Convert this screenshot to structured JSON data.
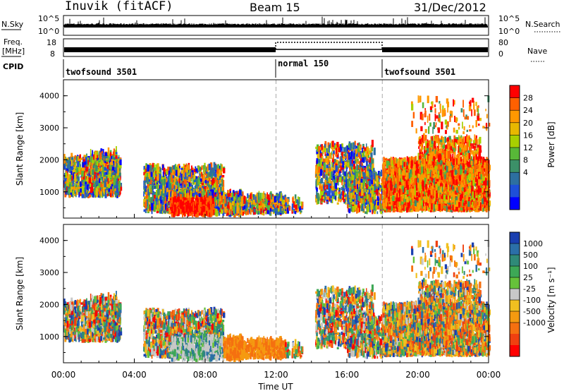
{
  "header": {
    "station": "Inuvik (fitACF)",
    "beam": "Beam 15",
    "date": "31/Dec/2012"
  },
  "top_panels": {
    "nsky_label": "N.Sky",
    "nsky_ticks_left": [
      "10^5",
      "10^0"
    ],
    "nsky_ticks_right": [
      "10^5",
      "10^0"
    ],
    "nsearch_label": "N.Search",
    "freq_label_1": "Freq.",
    "freq_label_2": "[MHz]",
    "freq_ticks": [
      "18",
      "8"
    ],
    "nave_ticks": [
      "80",
      "0"
    ],
    "nave_label": "Nave",
    "cpid_label": "CPID",
    "cpid_segments": [
      {
        "label": "twofsound 3501",
        "start": "00:00",
        "end": "12:00"
      },
      {
        "label": "normal 150",
        "start": "12:00",
        "end": "18:00"
      },
      {
        "label": "twofsound 3501",
        "start": "18:00",
        "end": "00:00"
      }
    ]
  },
  "chart_data": [
    {
      "type": "heatmap",
      "name": "power",
      "ylabel": "Slant Range [km]",
      "ylim": [
        180,
        4500
      ],
      "yticks": [
        "4000",
        "3000",
        "2000",
        "1000"
      ],
      "colorbar": {
        "label": "Power [dB]",
        "ticks": [
          "28",
          "24",
          "20",
          "16",
          "12",
          "8",
          "4"
        ],
        "colors": [
          "#ff0000",
          "#ff6000",
          "#ff9800",
          "#e8b800",
          "#a8d000",
          "#58b838",
          "#3c9068",
          "#2d6fa0",
          "#1e4fd8",
          "#0000ff"
        ]
      }
    },
    {
      "type": "heatmap",
      "name": "velocity",
      "ylabel": "Slant Range [km]",
      "ylim": [
        180,
        4500
      ],
      "yticks": [
        "4000",
        "3000",
        "2000",
        "1000"
      ],
      "xlabel": "Time UT",
      "xticks": [
        "00:00",
        "04:00",
        "08:00",
        "12:00",
        "16:00",
        "20:00",
        "00:00"
      ],
      "colorbar": {
        "label": "Velocity [m s⁻¹]",
        "ticks": [
          "1000",
          "500",
          "100",
          "25",
          "-25",
          "-100",
          "-500",
          "-1000"
        ],
        "colors": [
          "#1a3fb0",
          "#2b6fa8",
          "#2f8a78",
          "#3da856",
          "#66c23a",
          "#c8c8c8",
          "#f0c020",
          "#f59a10",
          "#f57010",
          "#f04010",
          "#ff0000"
        ]
      }
    }
  ]
}
